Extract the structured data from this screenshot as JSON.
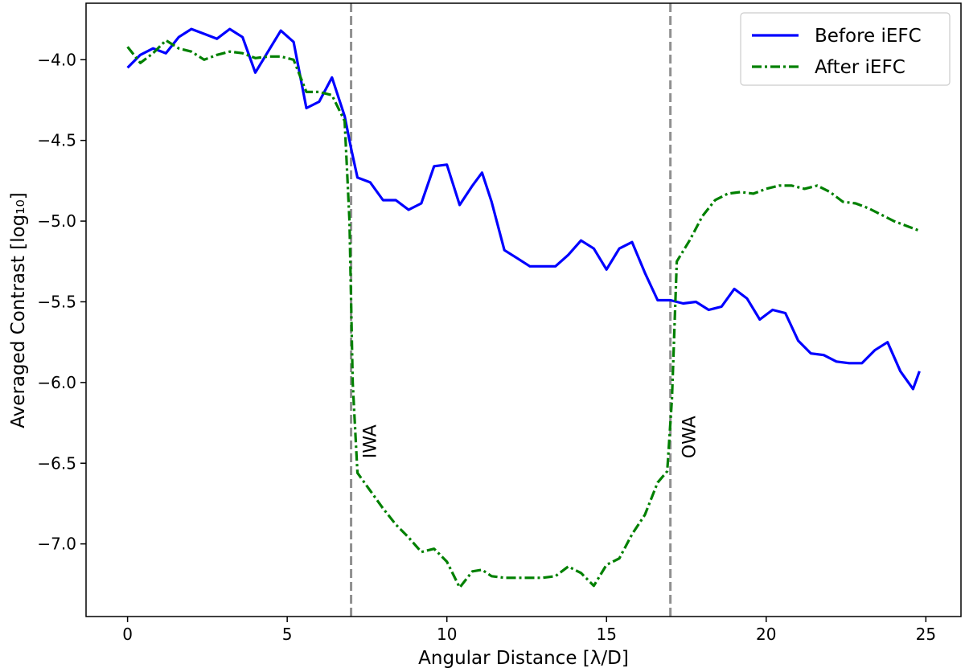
{
  "chart_data": {
    "type": "line",
    "xlabel": "Angular Distance [λ/D]",
    "ylabel": "Averaged Contrast [log₁₀]",
    "xlim": [
      -1.3,
      26.1
    ],
    "ylim": [
      -7.45,
      -3.65
    ],
    "xticks": [
      0,
      5,
      10,
      15,
      20,
      25
    ],
    "yticks": [
      -4.0,
      -4.5,
      -5.0,
      -5.5,
      -6.0,
      -6.5,
      -7.0
    ],
    "ytick_labels": [
      "−4.0",
      "−4.5",
      "−5.0",
      "−5.5",
      "−6.0",
      "−6.5",
      "−7.0"
    ],
    "grid": false,
    "legend_position": "top-right",
    "series": [
      {
        "name": "Before iEFC",
        "color": "#0000ff",
        "style": "solid",
        "x": [
          0,
          0.4,
          0.8,
          1.2,
          1.6,
          2.0,
          2.4,
          2.8,
          3.2,
          3.6,
          4.0,
          4.4,
          4.8,
          5.2,
          5.6,
          6.0,
          6.4,
          6.8,
          7.0,
          7.2,
          7.6,
          8.0,
          8.4,
          8.8,
          9.2,
          9.6,
          10.0,
          10.4,
          10.8,
          11.1,
          11.4,
          11.8,
          12.2,
          12.6,
          13.0,
          13.4,
          13.8,
          14.2,
          14.6,
          15.0,
          15.4,
          15.8,
          16.2,
          16.6,
          17.0,
          17.4,
          17.8,
          18.2,
          18.6,
          19.0,
          19.4,
          19.8,
          20.2,
          20.6,
          21.0,
          21.4,
          21.8,
          22.2,
          22.6,
          23.0,
          23.4,
          23.8,
          24.2,
          24.6,
          24.8
        ],
        "y": [
          -4.05,
          -3.97,
          -3.93,
          -3.96,
          -3.86,
          -3.81,
          -3.84,
          -3.87,
          -3.81,
          -3.86,
          -4.08,
          -3.95,
          -3.82,
          -3.89,
          -4.3,
          -4.26,
          -4.11,
          -4.35,
          -4.55,
          -4.73,
          -4.76,
          -4.87,
          -4.87,
          -4.93,
          -4.89,
          -4.66,
          -4.65,
          -4.9,
          -4.78,
          -4.7,
          -4.88,
          -5.18,
          -5.23,
          -5.28,
          -5.28,
          -5.28,
          -5.21,
          -5.12,
          -5.17,
          -5.3,
          -5.17,
          -5.13,
          -5.32,
          -5.49,
          -5.49,
          -5.51,
          -5.5,
          -5.55,
          -5.53,
          -5.42,
          -5.48,
          -5.61,
          -5.55,
          -5.57,
          -5.74,
          -5.82,
          -5.83,
          -5.87,
          -5.88,
          -5.88,
          -5.8,
          -5.75,
          -5.93,
          -6.04,
          -5.93
        ]
      },
      {
        "name": "After iEFC",
        "color": "#008000",
        "style": "dashdot",
        "x": [
          0,
          0.4,
          0.8,
          1.2,
          1.6,
          2.0,
          2.4,
          2.8,
          3.2,
          3.6,
          4.0,
          4.4,
          4.8,
          5.2,
          5.6,
          6.0,
          6.4,
          6.8,
          6.95,
          7.05,
          7.2,
          7.6,
          8.0,
          8.4,
          8.8,
          9.2,
          9.6,
          10.0,
          10.4,
          10.8,
          11.1,
          11.4,
          11.8,
          12.2,
          12.6,
          13.0,
          13.4,
          13.8,
          14.2,
          14.6,
          15.0,
          15.4,
          15.8,
          16.2,
          16.6,
          16.9,
          17.05,
          17.2,
          17.6,
          18.0,
          18.4,
          18.8,
          19.2,
          19.6,
          20.0,
          20.4,
          20.8,
          21.2,
          21.6,
          22.0,
          22.4,
          22.8,
          23.2,
          23.6,
          24.0,
          24.4,
          24.8
        ],
        "y": [
          -3.92,
          -4.02,
          -3.96,
          -3.88,
          -3.93,
          -3.95,
          -4.0,
          -3.97,
          -3.95,
          -3.96,
          -3.99,
          -3.98,
          -3.98,
          -4.0,
          -4.2,
          -4.2,
          -4.22,
          -4.38,
          -5.0,
          -6.0,
          -6.56,
          -6.67,
          -6.78,
          -6.88,
          -6.96,
          -7.05,
          -7.03,
          -7.11,
          -7.27,
          -7.17,
          -7.16,
          -7.2,
          -7.21,
          -7.21,
          -7.21,
          -7.21,
          -7.2,
          -7.14,
          -7.18,
          -7.26,
          -7.13,
          -7.09,
          -6.94,
          -6.82,
          -6.62,
          -6.55,
          -6.1,
          -5.25,
          -5.12,
          -4.97,
          -4.87,
          -4.83,
          -4.82,
          -4.83,
          -4.8,
          -4.78,
          -4.78,
          -4.8,
          -4.78,
          -4.82,
          -4.88,
          -4.89,
          -4.92,
          -4.96,
          -5.0,
          -5.03,
          -5.06
        ]
      }
    ],
    "vertical_lines": [
      {
        "x": 7.0,
        "label": "IWA",
        "color": "#909090"
      },
      {
        "x": 17.0,
        "label": "OWA",
        "color": "#909090"
      }
    ]
  }
}
